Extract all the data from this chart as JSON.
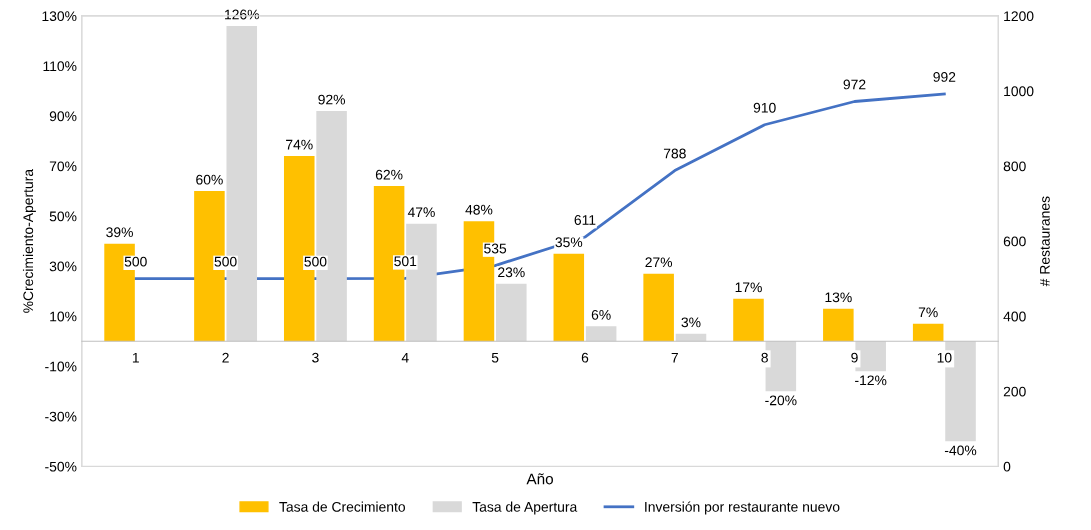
{
  "chart_data": {
    "type": "bar",
    "xlabel": "Año",
    "ylabel": "%Crecimiento-Apertura",
    "y2label": "# Restauranes",
    "categories": [
      "1",
      "2",
      "3",
      "4",
      "5",
      "6",
      "7",
      "8",
      "9",
      "10"
    ],
    "series": [
      {
        "name": "Tasa de Crecimiento",
        "color": "#ffc000",
        "values": [
          39,
          60,
          74,
          62,
          48,
          35,
          27,
          17,
          13,
          7
        ],
        "value_labels": [
          "39%",
          "60%",
          "74%",
          "62%",
          "48%",
          "35%",
          "27%",
          "17%",
          "13%",
          "7%"
        ]
      },
      {
        "name": "Tasa de Apertura",
        "color": "#d9d9d9",
        "values": [
          null,
          126,
          92,
          47,
          23,
          6,
          3,
          -20,
          -12,
          -40
        ],
        "value_labels": [
          null,
          "126%",
          "92%",
          "47%",
          "23%",
          "6%",
          "3%",
          "-20%",
          "-12%",
          "-40%"
        ]
      },
      {
        "name": "Inversión por restaurante nuevo",
        "type": "line",
        "axis": "y2",
        "color": "#4472c4",
        "values": [
          500,
          500,
          500,
          501,
          535,
          611,
          788,
          910,
          972,
          992
        ],
        "value_labels": [
          "500",
          "500",
          "500",
          "501",
          "535",
          "611",
          "788",
          "910",
          "972",
          "992"
        ]
      }
    ],
    "ylim": [
      -50,
      130
    ],
    "yticks": [
      {
        "value": -50,
        "label": "-50%"
      },
      {
        "value": -30,
        "label": "-30%"
      },
      {
        "value": -10,
        "label": "-10%"
      },
      {
        "value": 10,
        "label": "10%"
      },
      {
        "value": 30,
        "label": "30%"
      },
      {
        "value": 50,
        "label": "50%"
      },
      {
        "value": 70,
        "label": "70%"
      },
      {
        "value": 90,
        "label": "90%"
      },
      {
        "value": 110,
        "label": "110%"
      },
      {
        "value": 130,
        "label": "130%"
      }
    ],
    "y2lim": [
      0,
      1200
    ],
    "y2ticks": [
      0,
      200,
      400,
      600,
      800,
      1000,
      1200
    ],
    "legend": "bottom",
    "grid": false,
    "marker": "none",
    "line_style": "solid"
  }
}
